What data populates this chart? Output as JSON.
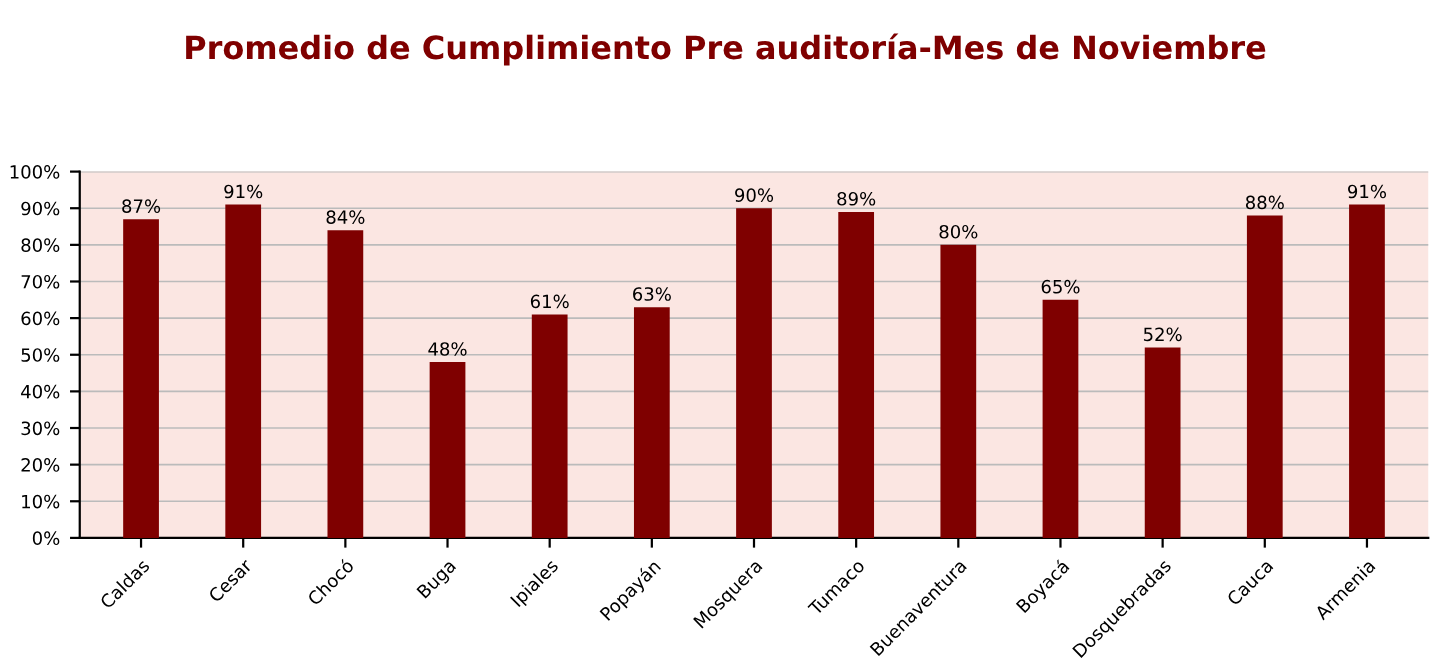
{
  "chart_data": {
    "type": "bar",
    "title": "Promedio de Cumplimiento Pre auditoría-Mes de Noviembre",
    "categories": [
      "Caldas",
      "Cesar",
      "Chocó",
      "Buga",
      "Ipiales",
      "Popayán",
      "Mosquera",
      "Tumaco",
      "Buenaventura",
      "Boyacá",
      "Dosquebradas",
      "Cauca",
      "Armenia"
    ],
    "values": [
      87,
      91,
      84,
      48,
      61,
      63,
      90,
      89,
      80,
      65,
      52,
      88,
      91
    ],
    "value_labels": [
      "87%",
      "91%",
      "84%",
      "48%",
      "61%",
      "63%",
      "90%",
      "89%",
      "80%",
      "65%",
      "52%",
      "88%",
      "91%"
    ],
    "color": "#7f0000",
    "ylim": [
      0,
      100
    ],
    "yticks": [
      {
        "value": 0,
        "label": "0%"
      },
      {
        "value": 10,
        "label": "10%"
      },
      {
        "value": 20,
        "label": "20%"
      },
      {
        "value": 30,
        "label": "30%"
      },
      {
        "value": 40,
        "label": "40%"
      },
      {
        "value": 50,
        "label": "50%"
      },
      {
        "value": 60,
        "label": "60%"
      },
      {
        "value": 70,
        "label": "70%"
      },
      {
        "value": 80,
        "label": "80%"
      },
      {
        "value": 90,
        "label": "90%"
      },
      {
        "value": 100,
        "label": "100%"
      }
    ],
    "grid": "y",
    "legend": false
  }
}
